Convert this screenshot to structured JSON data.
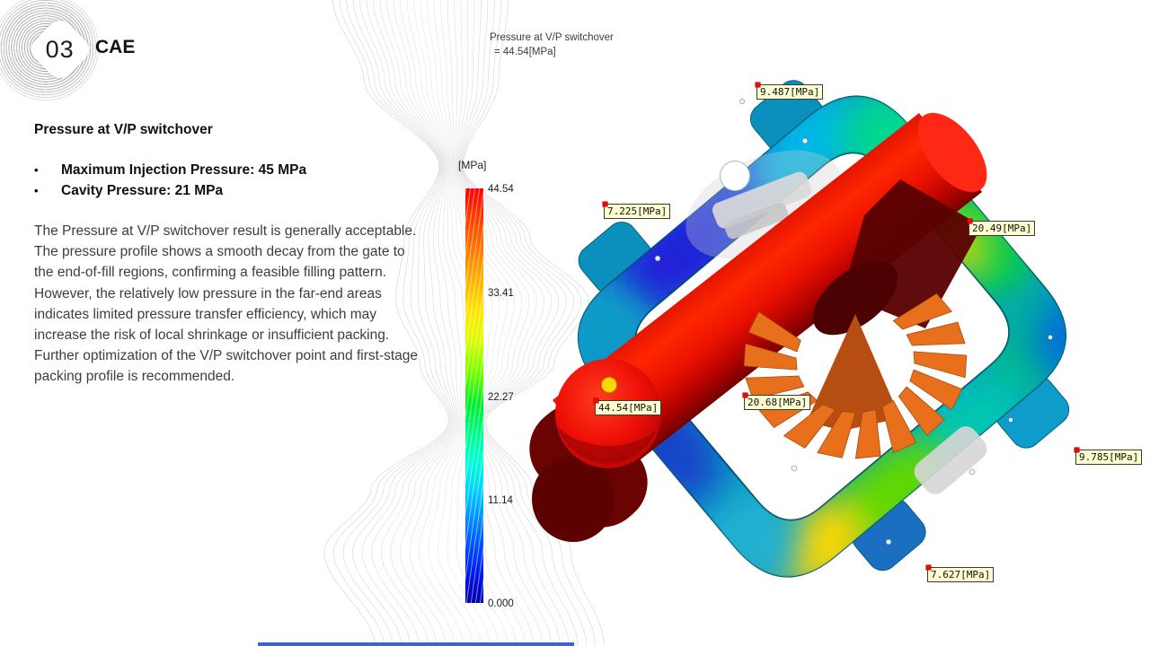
{
  "slide": {
    "number": "03",
    "section": "CAE"
  },
  "content": {
    "heading": "Pressure at V/P switchover",
    "bullet_marker": "•",
    "bullets": [
      "Maximum Injection Pressure: 45 MPa",
      "Cavity Pressure: 21 MPa"
    ],
    "paragraphs": [
      "The Pressure at V/P switchover result is generally acceptable. The pressure profile shows a smooth decay from the gate to the end-of-fill regions, confirming a feasible filling pattern.",
      "However, the relatively low pressure in the far-end areas indicates limited pressure transfer efficiency, which may increase the risk of local shrinkage or insufficient packing. Further optimization of the V/P switchover point and first-stage packing profile is recommended."
    ]
  },
  "plot": {
    "title_line1": "Pressure at V/P switchover",
    "title_line2": "= 44.54[MPa]",
    "colorbar": {
      "unit": "[MPa]",
      "ticks": [
        "44.54",
        "33.41",
        "22.27",
        "11.14",
        "0.000"
      ],
      "top_color": "#ff0000",
      "bottom_color": "#0000a2"
    },
    "probe_labels": [
      {
        "text": "9.487[MPa]"
      },
      {
        "text": "7.225[MPa]"
      },
      {
        "text": "20.49[MPa]"
      },
      {
        "text": "44.54[MPa]"
      },
      {
        "text": "20.68[MPa]"
      },
      {
        "text": "9.785[MPa]"
      },
      {
        "text": "7.627[MPa]"
      }
    ],
    "injection_marker_color": "#ffd800",
    "label_bg_color": "#ffffd0",
    "label_dot_color": "#ff0000"
  },
  "accent": {
    "bottom_bar_color": "#3a63d4"
  }
}
